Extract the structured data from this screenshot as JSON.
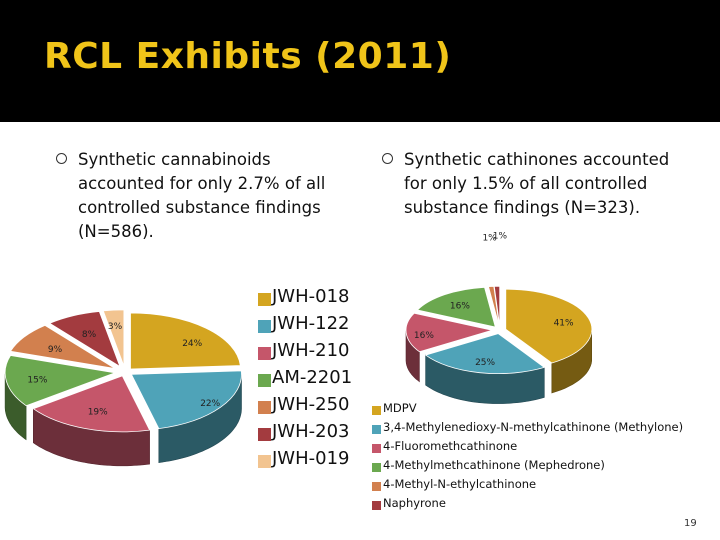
{
  "slide": {
    "title": "RCL Exhibits (2011)",
    "bullet_left": "Synthetic cannabinoids accounted for only 2.7% of all controlled substance findings (N=586).",
    "bullet_right": "Synthetic cathinones accounted for only 1.5% of all controlled substance findings (N=323).",
    "page_number": "19",
    "colors": {
      "title_bar": "#000000",
      "title_text": "#f0c419"
    }
  },
  "chart_data": [
    {
      "type": "pie",
      "style": "3d",
      "title": "Synthetic cannabinoids",
      "legend_position": "right",
      "categories": [
        "JWH-018",
        "JWH-122",
        "JWH-210",
        "AM-2201",
        "JWH-250",
        "JWH-203",
        "JWH-019"
      ],
      "values": [
        24,
        22,
        19,
        15,
        9,
        8,
        3
      ],
      "labels": [
        "24%",
        "22%",
        "19%",
        "15%",
        "9%",
        "8%",
        "3%"
      ],
      "colors": [
        "#d4a520",
        "#4fa3b8",
        "#c5566a",
        "#6ba84f",
        "#d2804e",
        "#a33b3f",
        "#f2c490"
      ]
    },
    {
      "type": "pie",
      "style": "3d",
      "title": "Synthetic cathinones",
      "legend_position": "bottom",
      "categories": [
        "MDPV",
        "3,4-Methylenedioxy-N-methylcathinone (Methylone)",
        "4-Fluoromethcathinone",
        "4-Methylmethcathinone (Mephedrone)",
        "4-Methyl-N-ethylcathinone",
        "Naphyrone"
      ],
      "values": [
        41,
        25,
        16,
        16,
        1,
        1
      ],
      "labels": [
        "41%",
        "25%",
        "16%",
        "16%",
        "1%",
        "1%"
      ],
      "colors": [
        "#d4a520",
        "#4fa3b8",
        "#c5566a",
        "#6ba84f",
        "#d2804e",
        "#a33b3f"
      ]
    }
  ]
}
